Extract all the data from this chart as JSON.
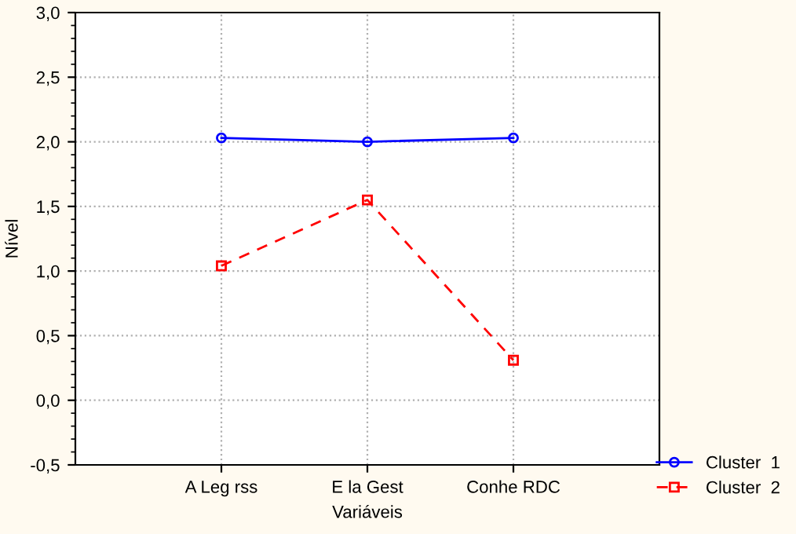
{
  "chart_data": {
    "type": "line",
    "xlabel": "Variáveis",
    "ylabel": "Nível",
    "categories": [
      "A Leg rss",
      "E la Gest",
      "Conhe RDC"
    ],
    "series": [
      {
        "name": "Cluster  1",
        "color": "#0000ff",
        "values": [
          2.03,
          2.0,
          2.03
        ],
        "marker": "circle",
        "line_style": "solid"
      },
      {
        "name": "Cluster  2",
        "color": "#ff0000",
        "values": [
          1.04,
          1.55,
          0.31
        ],
        "marker": "square",
        "line_style": "dashed"
      }
    ],
    "ylim": [
      -0.5,
      3.0
    ],
    "yticks": [
      {
        "value": -0.5,
        "label": "-0,5"
      },
      {
        "value": 0.0,
        "label": "0,0"
      },
      {
        "value": 0.5,
        "label": "0,5"
      },
      {
        "value": 1.0,
        "label": "1,0"
      },
      {
        "value": 1.5,
        "label": "1,5"
      },
      {
        "value": 2.0,
        "label": "2,0"
      },
      {
        "value": 2.5,
        "label": "2,5"
      },
      {
        "value": 3.0,
        "label": "3,0"
      }
    ],
    "grid": true,
    "legend": "bottom right"
  }
}
